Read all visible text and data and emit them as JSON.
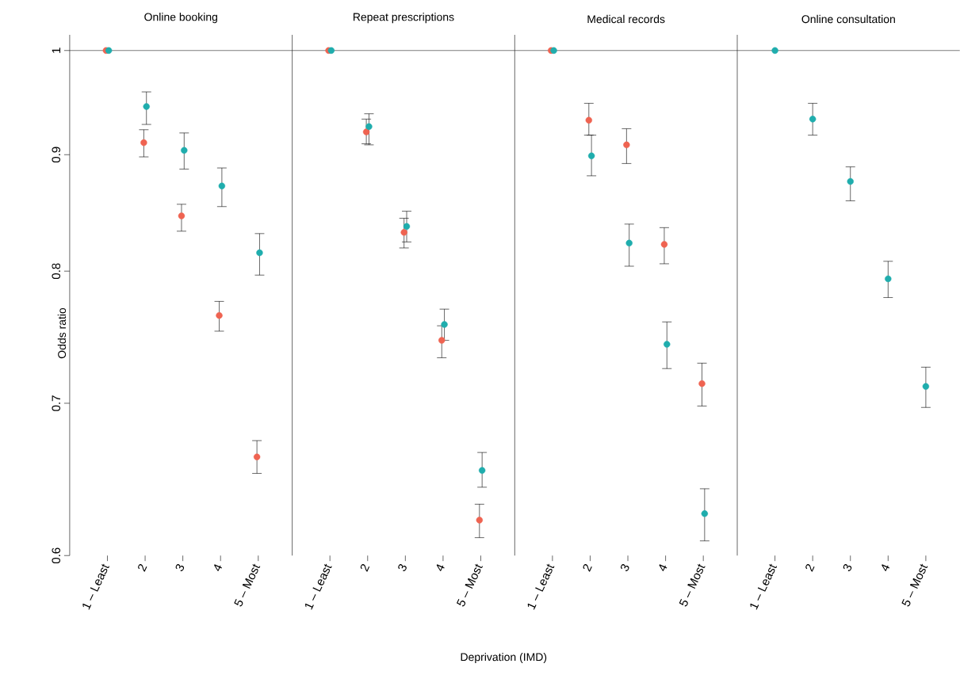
{
  "chart_data": [
    {
      "type": "scatter",
      "title": "Online booking",
      "ylabel": "Odds ratio",
      "log": "y",
      "categories": [
        "1 – Least",
        "2",
        "3",
        "4",
        "5 – Most"
      ],
      "ylim": [
        0.6,
        1.016
      ],
      "yticks": [
        0.6,
        0.7,
        0.8,
        0.9,
        1
      ],
      "ref_lines": [
        {
          "axis": "y",
          "value": 1,
          "color": "#222222"
        }
      ],
      "series": [
        {
          "color": "#ef6351",
          "values": [
            1,
            0.911,
            0.846,
            0.765,
            0.663
          ],
          "errors": [
            null,
            [
              0.898,
              0.923
            ],
            [
              0.833,
              0.856
            ],
            [
              0.753,
              0.776
            ],
            [
              0.652,
              0.674
            ]
          ]
        },
        {
          "color": "#1fadad",
          "values": [
            1,
            0.945,
            0.904,
            0.872,
            0.815
          ],
          "errors": [
            null,
            [
              0.928,
              0.959
            ],
            [
              0.887,
              0.92
            ],
            [
              0.854,
              0.888
            ],
            [
              0.797,
              0.831
            ]
          ]
        }
      ]
    },
    {
      "type": "scatter",
      "title": "Repeat prescriptions",
      "xlabel": "Deprivation (IMD)",
      "log": "y",
      "tick_labels": "x",
      "categories": [
        "1 – Least",
        "2",
        "3",
        "4",
        "5 – Most"
      ],
      "ylim": [
        0.6,
        1.016
      ],
      "ref_lines": [
        {
          "axis": "y",
          "value": 1,
          "color": "#222222"
        }
      ],
      "series": [
        {
          "color": "#ef6351",
          "values": [
            1,
            0.921,
            0.832,
            0.746,
            0.622
          ],
          "errors": [
            null,
            [
              0.91,
              0.933
            ],
            [
              0.819,
              0.844
            ],
            [
              0.733,
              0.757
            ],
            [
              0.611,
              0.632
            ]
          ]
        },
        {
          "color": "#1fadad",
          "values": [
            1,
            0.926,
            0.837,
            0.758,
            0.654
          ],
          "errors": [
            null,
            [
              0.909,
              0.938
            ],
            [
              0.824,
              0.85
            ],
            [
              0.746,
              0.77
            ],
            [
              0.643,
              0.666
            ]
          ]
        }
      ]
    },
    {
      "type": "scatter",
      "title": "Medical records",
      "log": "y",
      "tick_labels": "x",
      "categories": [
        "1 – Least",
        "2",
        "3",
        "4",
        "5 – Most"
      ],
      "ylim": [
        0.6,
        1.016
      ],
      "ref_lines": [
        {
          "axis": "y",
          "value": 1,
          "color": "#222222"
        }
      ],
      "series": [
        {
          "color": "#ef6351",
          "values": [
            1,
            0.932,
            0.909,
            0.822,
            0.714
          ],
          "errors": [
            null,
            [
              0.918,
              0.948
            ],
            [
              0.892,
              0.924
            ],
            [
              0.806,
              0.836
            ],
            [
              0.698,
              0.729
            ]
          ]
        },
        {
          "color": "#1fadad",
          "values": [
            1,
            0.899,
            0.823,
            0.743,
            0.626
          ],
          "errors": [
            null,
            [
              0.881,
              0.918
            ],
            [
              0.804,
              0.839
            ],
            [
              0.725,
              0.76
            ],
            [
              0.609,
              0.642
            ]
          ]
        }
      ]
    },
    {
      "type": "scatter",
      "title": "Online consultation",
      "log": "y",
      "tick_labels": "x",
      "categories": [
        "1 – Least",
        "2",
        "3",
        "4",
        "5 – Most"
      ],
      "ylim": [
        0.6,
        1.016
      ],
      "ref_lines": [
        {
          "axis": "y",
          "value": 1,
          "color": "#222222"
        }
      ],
      "series": [
        {
          "color": "#1fadad",
          "values": [
            1,
            0.933,
            0.876,
            0.794,
            0.712
          ],
          "errors": [
            null,
            [
              0.918,
              0.948
            ],
            [
              0.859,
              0.889
            ],
            [
              0.779,
              0.808
            ],
            [
              0.697,
              0.726
            ]
          ]
        }
      ]
    }
  ]
}
